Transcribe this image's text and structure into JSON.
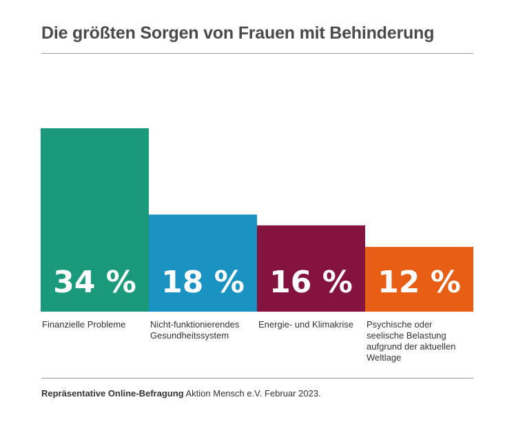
{
  "chart_data": {
    "type": "bar",
    "title": "Die größten Sorgen von Frauen mit Behinderung",
    "categories": [
      "Finanzielle Probleme",
      "Nicht-funktionierendes Gesundheitssystem",
      "Energie- und Klimakrise",
      "Psychische oder seelische Belastung aufgrund der aktuellen Weltlage"
    ],
    "values": [
      34,
      18,
      16,
      12
    ],
    "value_labels": [
      "34 %",
      "18 %",
      "16 %",
      "12 %"
    ],
    "unit": "%",
    "ylim": [
      0,
      34
    ],
    "grid": false,
    "legend": "none",
    "colors": [
      "#1a9a7b",
      "#1a93c2",
      "#85133f",
      "#e85e14"
    ]
  },
  "source": {
    "bold": "Repräsentative Online-Befragung",
    "rest": " Aktion Mensch e.V. Februar 2023."
  }
}
